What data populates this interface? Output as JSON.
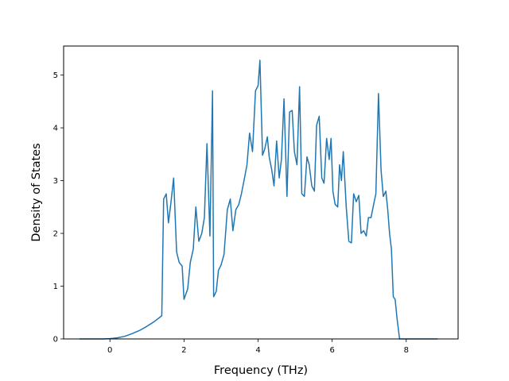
{
  "chart_data": {
    "type": "line",
    "title": "",
    "xlabel": "Frequency (THz)",
    "ylabel": "Density of States",
    "xlim": [
      -1.25,
      9.4
    ],
    "ylim": [
      0,
      5.55
    ],
    "xticks": [
      0,
      2,
      4,
      6,
      8
    ],
    "yticks": [
      0,
      1,
      2,
      3,
      4,
      5
    ],
    "grid": false,
    "legend": "none",
    "line_color": "#1f77b4",
    "series": [
      {
        "x": [
          -0.82,
          -0.6,
          -0.4,
          -0.2,
          0.0,
          0.2,
          0.4,
          0.6,
          0.8,
          1.0,
          1.2,
          1.4,
          1.45,
          1.52,
          1.58,
          1.65,
          1.72,
          1.8,
          1.87,
          1.95,
          2.0,
          2.1,
          2.17,
          2.25,
          2.32,
          2.4,
          2.48,
          2.55,
          2.62,
          2.7,
          2.77,
          2.8,
          2.87,
          2.93,
          3.0,
          3.08,
          3.17,
          3.25,
          3.32,
          3.4,
          3.48,
          3.55,
          3.62,
          3.7,
          3.77,
          3.85,
          3.93,
          4.0,
          4.05,
          4.12,
          4.18,
          4.25,
          4.3,
          4.37,
          4.43,
          4.5,
          4.57,
          4.63,
          4.7,
          4.78,
          4.85,
          4.92,
          4.98,
          5.05,
          5.12,
          5.18,
          5.25,
          5.32,
          5.38,
          5.45,
          5.52,
          5.58,
          5.65,
          5.72,
          5.78,
          5.85,
          5.92,
          5.97,
          6.02,
          6.08,
          6.15,
          6.2,
          6.25,
          6.3,
          6.38,
          6.45,
          6.52,
          6.58,
          6.65,
          6.72,
          6.78,
          6.85,
          6.92,
          6.98,
          7.05,
          7.12,
          7.18,
          7.25,
          7.32,
          7.38,
          7.45,
          7.5,
          7.55,
          7.6,
          7.65,
          7.7,
          7.75,
          7.82,
          7.88,
          7.95,
          8.0,
          8.05,
          8.12,
          8.5,
          8.85
        ],
        "y": [
          0,
          0,
          0,
          0,
          0.005,
          0.02,
          0.05,
          0.1,
          0.16,
          0.24,
          0.33,
          0.44,
          2.65,
          2.75,
          2.2,
          2.6,
          3.05,
          1.65,
          1.45,
          1.38,
          0.75,
          0.95,
          1.45,
          1.7,
          2.5,
          1.85,
          2.0,
          2.3,
          3.7,
          1.95,
          4.7,
          0.8,
          0.9,
          1.3,
          1.4,
          1.6,
          2.45,
          2.65,
          2.05,
          2.45,
          2.55,
          2.75,
          3.0,
          3.3,
          3.9,
          3.55,
          4.7,
          4.8,
          5.28,
          3.48,
          3.6,
          3.83,
          3.45,
          3.2,
          2.9,
          3.75,
          3.05,
          3.4,
          4.55,
          2.7,
          4.3,
          4.33,
          3.55,
          3.3,
          4.78,
          2.75,
          2.7,
          3.45,
          3.3,
          2.9,
          2.8,
          4.05,
          4.22,
          3.05,
          2.95,
          3.8,
          3.4,
          3.8,
          2.8,
          2.55,
          2.5,
          3.3,
          3.0,
          3.55,
          2.5,
          1.85,
          1.82,
          2.75,
          2.6,
          2.72,
          2.0,
          2.05,
          1.95,
          2.3,
          2.3,
          2.55,
          2.75,
          4.65,
          3.2,
          2.7,
          2.8,
          2.45,
          2.0,
          1.7,
          0.8,
          0.75,
          0.4,
          0,
          0,
          0,
          0,
          0,
          0,
          0,
          0
        ]
      }
    ]
  }
}
